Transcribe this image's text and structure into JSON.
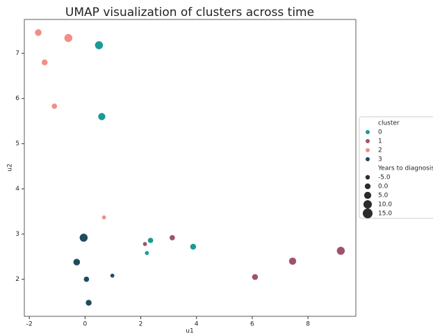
{
  "chart_data": {
    "type": "scatter",
    "title": "UMAP visualization of clusters across time",
    "x_label": "u1",
    "y_label": "u2",
    "xlim": [
      -2.18,
      9.72
    ],
    "ylim": [
      1.18,
      7.75
    ],
    "xticks": [
      -2,
      0,
      2,
      4,
      6,
      8
    ],
    "yticks": [
      2,
      3,
      4,
      5,
      6,
      7
    ],
    "legend_title": "cluster",
    "legend_position": "right",
    "series": [
      {
        "name": "0",
        "color": "#1b9a96",
        "x": [
          0.5,
          0.6,
          2.35,
          2.22,
          3.88
        ],
        "values": [
          7.18,
          5.6,
          2.86,
          2.58,
          2.72
        ],
        "sizes": [
          10,
          7,
          0,
          -5,
          2
        ]
      },
      {
        "name": "1",
        "color": "#a0526a",
        "x": [
          2.15,
          3.13,
          6.1,
          7.45,
          9.18
        ],
        "values": [
          2.78,
          2.92,
          2.05,
          2.4,
          2.63
        ],
        "sizes": [
          -5,
          0,
          2,
          7,
          10
        ]
      },
      {
        "name": "2",
        "color": "#f28e85",
        "x": [
          -1.68,
          -0.6,
          -1.45,
          -1.1,
          0.68
        ],
        "values": [
          7.46,
          7.34,
          6.8,
          5.83,
          3.37
        ],
        "sizes": [
          5,
          10,
          2,
          0,
          -5
        ]
      },
      {
        "name": "3",
        "color": "#1f4b5e",
        "x": [
          -0.05,
          -0.3,
          0.05,
          0.98,
          0.13
        ],
        "values": [
          2.92,
          2.38,
          2.0,
          2.08,
          1.48
        ],
        "sizes": [
          10,
          5,
          0,
          -5,
          2
        ]
      }
    ],
    "size_legend": {
      "title": "Years to diagnosis",
      "color": "#2b2b2b",
      "values": [
        {
          "value": -5,
          "label": "-5.0"
        },
        {
          "value": 0,
          "label": "0.0"
        },
        {
          "value": 5,
          "label": "5.0"
        },
        {
          "value": 10,
          "label": "10.0"
        },
        {
          "value": 15,
          "label": "15.0"
        }
      ]
    }
  }
}
